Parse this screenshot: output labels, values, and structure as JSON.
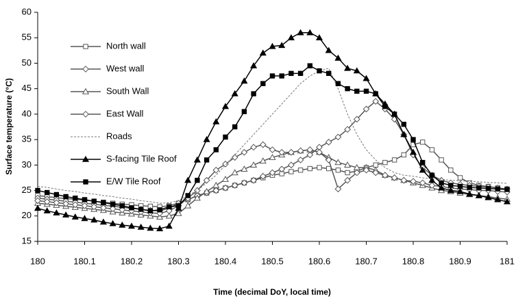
{
  "chart_data": {
    "type": "line",
    "x_label": "Time (decimal DoY, local time)",
    "y_label": "Surface temperature (°C)",
    "x": [
      180,
      180.02,
      180.04,
      180.06,
      180.08,
      180.1,
      180.12,
      180.14,
      180.16,
      180.18,
      180.2,
      180.22,
      180.24,
      180.26,
      180.28,
      180.3,
      180.32,
      180.34,
      180.36,
      180.38,
      180.4,
      180.42,
      180.44,
      180.46,
      180.48,
      180.5,
      180.52,
      180.54,
      180.56,
      180.58,
      180.6,
      180.62,
      180.64,
      180.66,
      180.68,
      180.7,
      180.72,
      180.74,
      180.76,
      180.78,
      180.8,
      180.82,
      180.84,
      180.86,
      180.88,
      180.9,
      180.92,
      180.94,
      180.96,
      180.98,
      181
    ],
    "xlim": [
      180,
      181
    ],
    "xticks": [
      180,
      180.1,
      180.2,
      180.3,
      180.4,
      180.5,
      180.6,
      180.7,
      180.8,
      180.9,
      181
    ],
    "ylim": [
      15,
      60
    ],
    "yticks": [
      15,
      20,
      25,
      30,
      35,
      40,
      45,
      50,
      55,
      60
    ],
    "grid": false,
    "legend": "upper left",
    "series": [
      {
        "name": "North wall",
        "color": "#555555",
        "marker": "square-open",
        "dash": false,
        "values": [
          24,
          23.8,
          23.6,
          23.4,
          23.3,
          23.1,
          22.9,
          22.7,
          22.5,
          22.3,
          22.2,
          22,
          21.9,
          21.8,
          22,
          22.5,
          23.2,
          24,
          24.5,
          25,
          25.5,
          26,
          26.5,
          27,
          27.5,
          28,
          28.3,
          28.7,
          29,
          29.3,
          29.5,
          29.3,
          29,
          28.5,
          28.8,
          29.5,
          30,
          30.5,
          31,
          32,
          34,
          34.5,
          33,
          31,
          29,
          27.5,
          26.5,
          26,
          25.8,
          25.5,
          25.3
        ]
      },
      {
        "name": "West wall",
        "color": "#555555",
        "marker": "diamond-open",
        "dash": false,
        "values": [
          23.5,
          23.3,
          23.1,
          22.9,
          22.7,
          22.5,
          22.3,
          22.1,
          21.9,
          21.7,
          21.5,
          21.3,
          21.1,
          21,
          21.5,
          22.5,
          23.2,
          24,
          24.5,
          25,
          25.5,
          26,
          26.5,
          27,
          27.8,
          28.5,
          29.2,
          30,
          31,
          32,
          33.5,
          34.5,
          35.5,
          37,
          39,
          41,
          42.5,
          41,
          39,
          36,
          32,
          29.5,
          28,
          27,
          26.5,
          26.2,
          26,
          25.8,
          25.7,
          25.5,
          25.3
        ]
      },
      {
        "name": "South Wall",
        "color": "#555555",
        "marker": "triangle-open",
        "dash": false,
        "values": [
          22.5,
          22.3,
          22.1,
          21.9,
          21.7,
          21.5,
          21.3,
          21.1,
          20.8,
          20.6,
          20.4,
          20.2,
          20,
          19.8,
          20,
          20.5,
          22,
          23.5,
          24.8,
          26,
          27.2,
          28.5,
          29.2,
          30,
          30.8,
          31.5,
          32,
          32.5,
          32.8,
          33,
          32.5,
          31.5,
          30.5,
          30,
          29.5,
          29.5,
          29,
          28,
          27.5,
          27,
          26.5,
          26,
          25.5,
          25,
          24.8,
          24.5,
          24.2,
          24,
          23.8,
          23.5,
          23.3
        ]
      },
      {
        "name": "East Wall",
        "color": "#555555",
        "marker": "diamond-open",
        "dash": false,
        "values": [
          23,
          22.8,
          22.6,
          22.4,
          22.2,
          22,
          21.8,
          21.6,
          21.4,
          21.2,
          21,
          20.8,
          20.6,
          20.5,
          21,
          22,
          23.5,
          25,
          27,
          29,
          30.2,
          31.5,
          32.5,
          33.5,
          34,
          33,
          32.5,
          32.5,
          32.8,
          33,
          32.5,
          31,
          25.3,
          27,
          28.5,
          29,
          28.5,
          28,
          27.5,
          27,
          26.8,
          26.5,
          26,
          25.8,
          25.5,
          25.3,
          25.2,
          25,
          25,
          24.8,
          24.7
        ]
      },
      {
        "name": "Roads",
        "color": "#777777",
        "marker": "none",
        "dash": true,
        "values": [
          25.8,
          25.6,
          25.3,
          25,
          24.8,
          24.5,
          24.3,
          24,
          23.8,
          23.5,
          23.3,
          23,
          22.8,
          22.5,
          22.6,
          23,
          24,
          25,
          26.5,
          28,
          30,
          32,
          34,
          36,
          38,
          40,
          42,
          44,
          46,
          47.5,
          48.5,
          49,
          45,
          40,
          36,
          33,
          31,
          29.5,
          28.5,
          28,
          27.8,
          27.5,
          27.3,
          27.2,
          27,
          26.9,
          26.8,
          26.7,
          26.6,
          26.5,
          26.4
        ]
      },
      {
        "name": "S-facing Tile Roof",
        "color": "#000000",
        "marker": "triangle",
        "dash": false,
        "values": [
          21.5,
          21,
          20.6,
          20.2,
          19.8,
          19.5,
          19.2,
          18.8,
          18.5,
          18.2,
          18,
          17.8,
          17.6,
          17.5,
          18,
          21.5,
          27,
          31,
          35,
          38.5,
          41.5,
          44,
          46.5,
          49.5,
          52,
          53.3,
          53.5,
          55,
          56,
          56,
          55,
          52.5,
          51,
          49,
          48.5,
          47,
          44,
          42,
          40,
          36,
          32.5,
          29,
          27,
          25.5,
          25,
          24.8,
          24.3,
          24,
          23.6,
          23.2,
          22.8
        ]
      },
      {
        "name": "E/W Tile Roof",
        "color": "#000000",
        "marker": "square",
        "dash": false,
        "values": [
          25,
          24.6,
          24.2,
          23.8,
          23.5,
          23.2,
          22.9,
          22.6,
          22.3,
          22,
          21.6,
          21.3,
          21,
          21.2,
          21.8,
          22,
          24,
          27,
          31,
          33,
          35.5,
          37.5,
          40.5,
          44,
          46,
          47.5,
          47.5,
          48,
          48,
          49.5,
          48.5,
          48,
          46,
          45,
          44.5,
          44.5,
          44,
          41.5,
          40,
          38,
          35,
          30.5,
          28,
          26.5,
          26,
          25.8,
          25.6,
          25.5,
          25.4,
          25.3,
          25.2
        ]
      }
    ]
  }
}
